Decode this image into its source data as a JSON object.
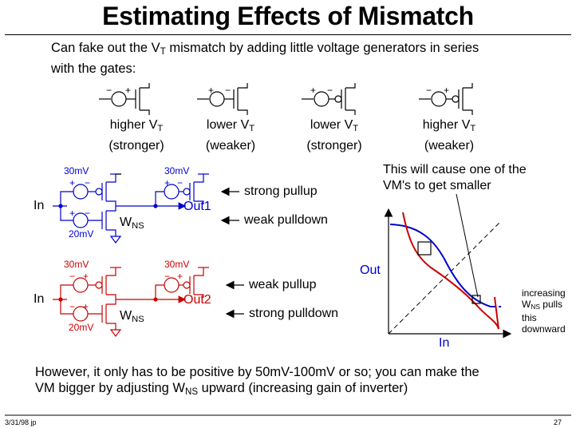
{
  "title": "Estimating Effects of Mismatch",
  "intro": {
    "line1_pre": "Can fake out the V",
    "line1_sub": "T",
    "line1_post": " mismatch by adding little voltage generators in series",
    "line2": "with the gates:"
  },
  "symbols": [
    {
      "l1": "higher V",
      "sub": "T",
      "l2": "(stronger)"
    },
    {
      "l1": "lower V",
      "sub": "T",
      "l2": "(weaker)"
    },
    {
      "l1": "lower V",
      "sub": "T",
      "l2": "(stronger)"
    },
    {
      "l1": "higher V",
      "sub": "T",
      "l2": "(weaker)"
    }
  ],
  "circuit1": {
    "top_mv": "30mV",
    "top_mv2": "30mV",
    "bot_mv": "20mV",
    "in": "In",
    "out": "Out1",
    "w": "W",
    "w_sub": "NS",
    "pullup": "strong pullup",
    "pulldown": "weak pulldown",
    "color": "#0000cc"
  },
  "circuit2": {
    "top_mv": "30mV",
    "top_mv2": "30mV",
    "bot_mv": "20mV",
    "in": "In",
    "out": "Out2",
    "w": "W",
    "w_sub": "NS",
    "pullup": "weak pullup",
    "pulldown": "strong pulldown",
    "color": "#cc0000"
  },
  "plot": {
    "caption_l1": "This will cause one of the",
    "caption_l2": "VM's to get smaller",
    "ylabel": "Out",
    "xlabel": "In",
    "note_l1": "increasing",
    "note_w": "W",
    "note_sub": "NS",
    "note_l2_post": " pulls",
    "note_l3": "this",
    "note_l4": "downward"
  },
  "conclusion": {
    "line1": "However, it only has to be positive by 50mV-100mV or so; you can make the",
    "line2_pre": "VM bigger by adjusting W",
    "line2_sub": "NS",
    "line2_post": " upward (increasing gain of inverter)"
  },
  "footer": {
    "left": "3/31/98  jp",
    "right": "27"
  }
}
